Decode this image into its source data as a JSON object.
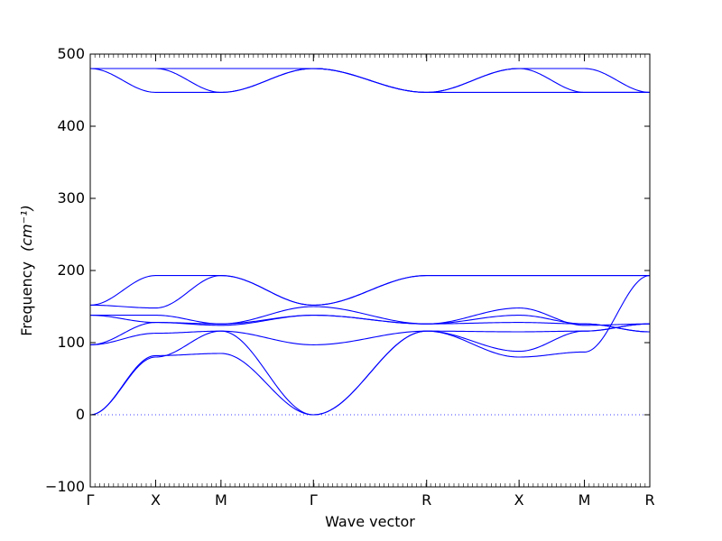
{
  "chart_data": {
    "type": "line",
    "xlabel": "Wave vector",
    "ylabel": "Frequency",
    "ylabel_unit": "(cm⁻¹)",
    "ylim": [
      -100,
      500
    ],
    "yticks": [
      -100,
      0,
      100,
      200,
      300,
      400,
      500
    ],
    "grid": false,
    "legend": "none",
    "zero_line": {
      "y": 0,
      "style": "dotted"
    },
    "line_color": "#0000ff",
    "path": {
      "labels": [
        "Γ",
        "X",
        "M",
        "Γ",
        "R",
        "X",
        "M",
        "R"
      ],
      "segment_lengths": [
        1,
        1,
        1.414,
        1.732,
        1.414,
        1,
        1
      ]
    },
    "series": [
      {
        "name": "",
        "points": [
          0,
          0,
          1,
          82,
          2,
          85,
          3.414,
          0,
          5.146,
          116,
          6.56,
          80,
          7.56,
          87,
          8.56,
          193
        ]
      },
      {
        "name": "",
        "points": [
          0,
          0,
          1,
          80,
          2,
          116,
          3.414,
          0,
          5.146,
          116,
          6.56,
          88,
          7.56,
          116,
          8.56,
          126
        ]
      },
      {
        "name": "",
        "points": [
          0,
          97,
          1,
          113,
          2,
          116,
          3.414,
          97,
          5.146,
          116,
          6.56,
          115,
          7.56,
          116,
          8.56,
          126
        ]
      },
      {
        "name": "",
        "points": [
          0,
          97,
          1,
          128,
          2,
          124,
          3.414,
          138,
          5.146,
          126,
          6.56,
          128,
          7.56,
          126,
          8.56,
          115
        ]
      },
      {
        "name": "",
        "points": [
          0,
          138,
          1,
          138,
          2,
          126,
          3.414,
          138,
          5.146,
          126,
          6.56,
          138,
          7.56,
          126,
          8.56,
          115
        ]
      },
      {
        "name": "",
        "points": [
          0,
          138,
          1,
          128,
          2,
          126,
          3.414,
          150,
          5.146,
          126,
          6.56,
          148,
          7.56,
          124,
          8.56,
          126
        ]
      },
      {
        "name": "",
        "points": [
          0,
          152,
          1,
          148,
          2,
          193,
          3.414,
          152,
          5.146,
          193,
          6.56,
          193,
          7.56,
          193,
          8.56,
          193
        ]
      },
      {
        "name": "",
        "points": [
          0,
          152,
          1,
          193,
          2,
          193,
          3.414,
          152,
          5.146,
          193,
          6.56,
          193,
          7.56,
          193,
          8.56,
          193
        ]
      },
      {
        "name": "",
        "points": [
          0,
          480,
          1,
          447,
          2,
          447,
          3.414,
          480,
          5.146,
          447,
          6.56,
          447,
          7.56,
          447,
          8.56,
          447
        ]
      },
      {
        "name": "",
        "points": [
          0,
          480,
          1,
          480,
          2,
          447,
          3.414,
          480,
          5.146,
          447,
          6.56,
          480,
          7.56,
          447,
          8.56,
          447
        ]
      },
      {
        "name": "",
        "points": [
          0,
          480,
          1,
          480,
          2,
          480,
          3.414,
          480,
          5.146,
          447,
          6.56,
          480,
          7.56,
          480,
          8.56,
          447
        ]
      }
    ]
  }
}
